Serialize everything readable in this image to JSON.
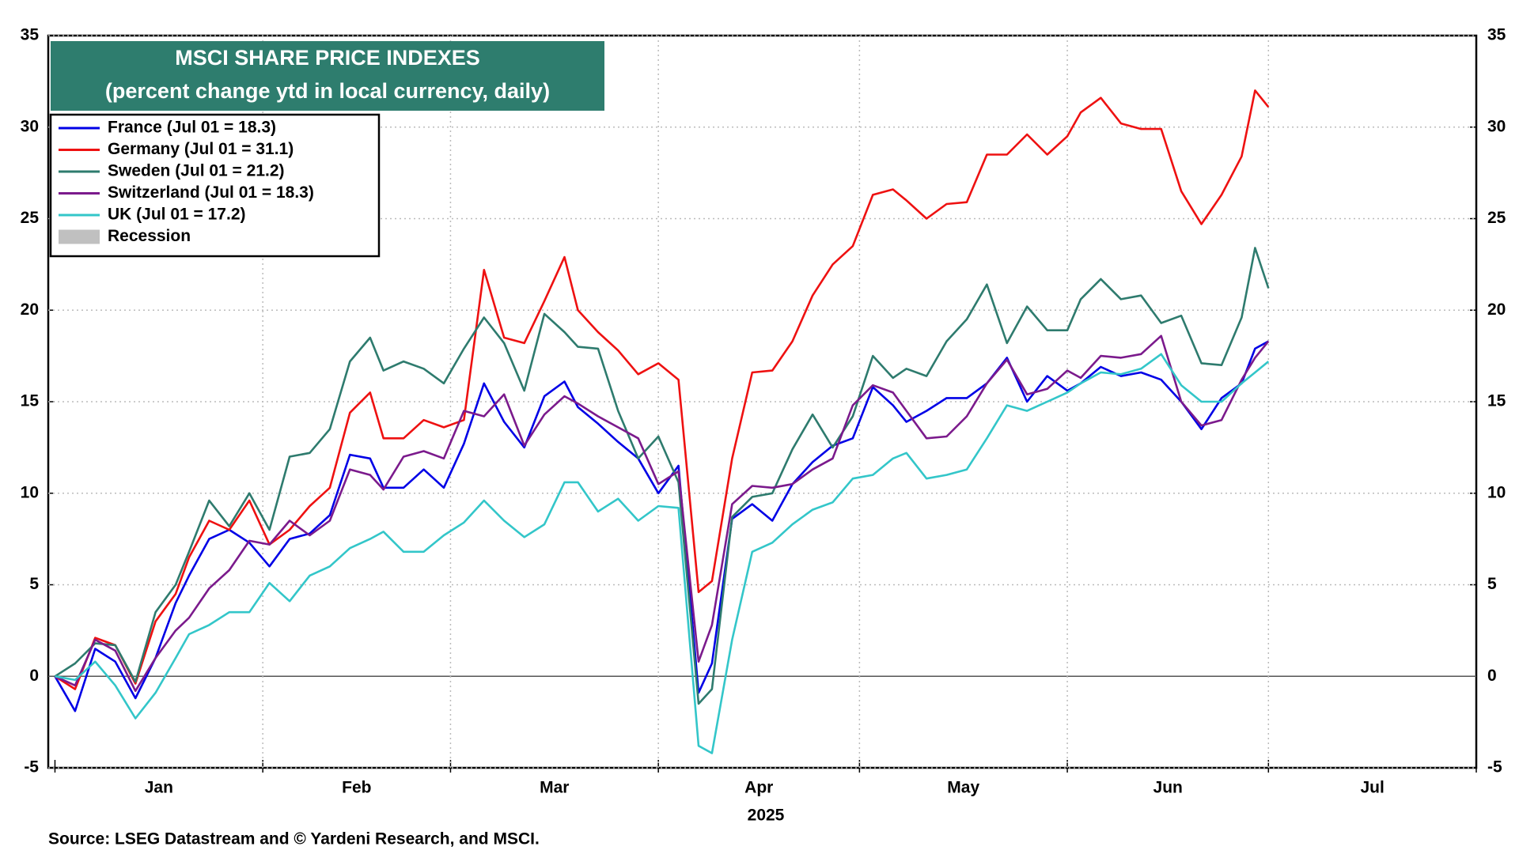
{
  "chart_data": {
    "type": "line",
    "title": "MSCI SHARE PRICE INDEXES",
    "subtitle": "(percent change ytd in local currency, daily)",
    "xlabel": "2025",
    "source": "Source: LSEG Datastream and © Yardeni Research, and MSCI.",
    "x_labels": [
      "Jan",
      "Feb",
      "Mar",
      "Apr",
      "May",
      "Jun",
      "Jul"
    ],
    "xlim": [
      0,
      213
    ],
    "xticks": [
      1,
      32,
      60,
      91,
      121,
      152,
      182,
      213
    ],
    "ylim": [
      -5,
      35
    ],
    "yticks": [
      -5,
      0,
      5,
      10,
      15,
      20,
      25,
      30,
      35
    ],
    "grid": true,
    "legend": "upper left",
    "legend_extra": {
      "name": "Recession",
      "color": "#c0c0c0"
    },
    "x": [
      1,
      4,
      7,
      10,
      13,
      16,
      19,
      21,
      24,
      27,
      30,
      33,
      36,
      39,
      42,
      45,
      48,
      50,
      53,
      56,
      59,
      62,
      65,
      68,
      71,
      74,
      77,
      79,
      82,
      85,
      88,
      91,
      94,
      97,
      99,
      102,
      105,
      108,
      111,
      114,
      117,
      120,
      123,
      126,
      128,
      131,
      134,
      137,
      140,
      143,
      146,
      149,
      152,
      154,
      157,
      160,
      163,
      166,
      169,
      172,
      175,
      178,
      180,
      182
    ],
    "series": [
      {
        "name": "France (Jul 01 = 18.3)",
        "color": "#0000e6",
        "values": [
          0,
          -1.9,
          1.5,
          0.8,
          -1.2,
          1.0,
          4.0,
          5.5,
          7.5,
          8.0,
          7.3,
          6.0,
          7.5,
          7.8,
          8.8,
          12.1,
          11.9,
          10.3,
          10.3,
          11.3,
          10.3,
          12.7,
          16.0,
          13.9,
          12.5,
          15.3,
          16.1,
          14.7,
          13.8,
          12.8,
          11.9,
          10.0,
          11.5,
          -0.9,
          0.7,
          8.6,
          9.4,
          8.5,
          10.5,
          11.7,
          12.6,
          13.0,
          15.8,
          14.8,
          13.9,
          14.5,
          15.2,
          15.2,
          16.0,
          17.4,
          15.0,
          16.4,
          15.6,
          16.0,
          16.9,
          16.4,
          16.6,
          16.2,
          15.0,
          13.5,
          15.2,
          16.0,
          17.9,
          18.3
        ]
      },
      {
        "name": "Germany (Jul 01 = 31.1)",
        "color": "#ee1111",
        "values": [
          0,
          -0.7,
          2.1,
          1.7,
          -0.4,
          3.0,
          4.5,
          6.5,
          8.5,
          8.0,
          9.6,
          7.2,
          8.0,
          9.3,
          10.3,
          14.4,
          15.5,
          13.0,
          13.0,
          14.0,
          13.6,
          14.0,
          22.2,
          18.5,
          18.2,
          20.5,
          22.9,
          20.0,
          18.8,
          17.8,
          16.5,
          17.1,
          16.2,
          4.6,
          5.2,
          11.9,
          16.6,
          16.7,
          18.3,
          20.8,
          22.5,
          23.5,
          26.3,
          26.6,
          26.0,
          25.0,
          25.8,
          25.9,
          28.5,
          28.5,
          29.6,
          28.5,
          29.5,
          30.8,
          31.6,
          30.2,
          29.9,
          29.9,
          26.5,
          24.7,
          26.3,
          28.4,
          32.0,
          31.1
        ]
      },
      {
        "name": "Sweden (Jul 01 = 21.2)",
        "color": "#2e7b6e",
        "values": [
          0,
          0.7,
          1.8,
          1.7,
          -0.3,
          3.5,
          5.0,
          6.8,
          9.6,
          8.2,
          10.0,
          8.0,
          12.0,
          12.2,
          13.5,
          17.2,
          18.5,
          16.7,
          17.2,
          16.8,
          16.0,
          17.9,
          19.6,
          18.2,
          15.6,
          19.8,
          18.8,
          18.0,
          17.9,
          14.5,
          11.9,
          13.1,
          10.6,
          -1.5,
          -0.7,
          8.7,
          9.8,
          10.0,
          12.4,
          14.3,
          12.5,
          14.2,
          17.5,
          16.3,
          16.8,
          16.4,
          18.3,
          19.5,
          21.4,
          18.2,
          20.2,
          18.9,
          18.9,
          20.6,
          21.7,
          20.6,
          20.8,
          19.3,
          19.7,
          17.1,
          17.0,
          19.6,
          23.4,
          21.2
        ]
      },
      {
        "name": "Switzerland (Jul 01 = 18.3)",
        "color": "#7b1a8c",
        "values": [
          0,
          -0.5,
          2.0,
          1.4,
          -0.8,
          1.0,
          2.5,
          3.2,
          4.8,
          5.8,
          7.4,
          7.2,
          8.5,
          7.7,
          8.5,
          11.3,
          11.0,
          10.2,
          12.0,
          12.3,
          11.9,
          14.5,
          14.2,
          15.4,
          12.6,
          14.3,
          15.3,
          14.9,
          14.2,
          13.6,
          13.0,
          10.5,
          11.2,
          0.8,
          2.8,
          9.4,
          10.4,
          10.3,
          10.5,
          11.3,
          11.9,
          14.8,
          15.9,
          15.5,
          14.5,
          13.0,
          13.1,
          14.2,
          16.0,
          17.3,
          15.4,
          15.7,
          16.7,
          16.3,
          17.5,
          17.4,
          17.6,
          18.6,
          15.0,
          13.7,
          14.0,
          16.2,
          17.4,
          18.3
        ]
      },
      {
        "name": "UK (Jul 01 = 17.2)",
        "color": "#33c6c9",
        "values": [
          0,
          -0.2,
          0.8,
          -0.5,
          -2.3,
          -0.9,
          1.0,
          2.3,
          2.8,
          3.5,
          3.5,
          5.1,
          4.1,
          5.5,
          6.0,
          7.0,
          7.5,
          7.9,
          6.8,
          6.8,
          7.7,
          8.4,
          9.6,
          8.5,
          7.6,
          8.3,
          10.6,
          10.6,
          9.0,
          9.7,
          8.5,
          9.3,
          9.2,
          -3.8,
          -4.2,
          2.0,
          6.8,
          7.3,
          8.3,
          9.1,
          9.5,
          10.8,
          11.0,
          11.9,
          12.2,
          10.8,
          11.0,
          11.3,
          13.0,
          14.8,
          14.5,
          15.0,
          15.5,
          16.0,
          16.6,
          16.5,
          16.8,
          17.6,
          15.9,
          15.0,
          15.0,
          16.0,
          16.6,
          17.2
        ]
      }
    ]
  }
}
